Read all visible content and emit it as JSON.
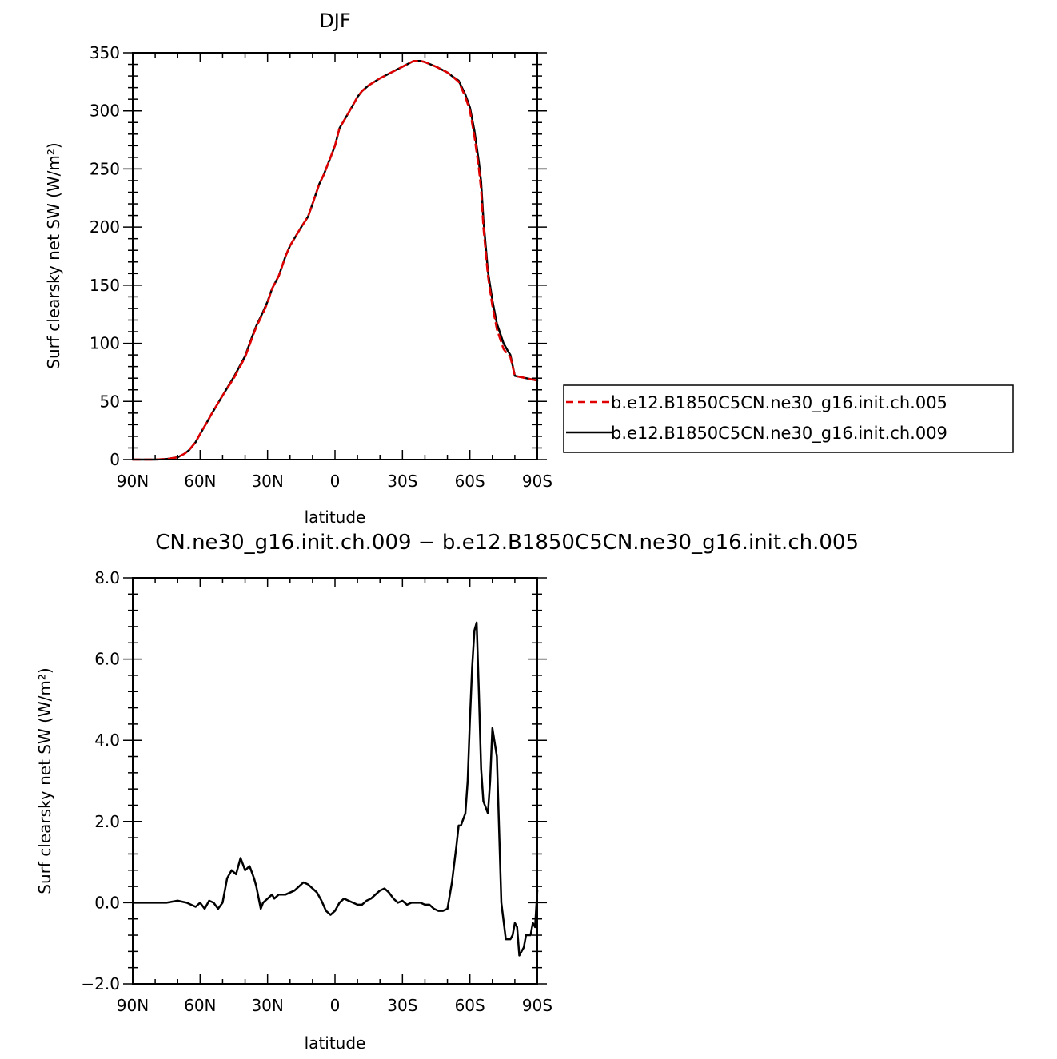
{
  "chart_data": [
    {
      "type": "line",
      "title": "DJF",
      "xlabel": "latitude",
      "ylabel": "Surf clearsky net SW (W/m²)",
      "xlim": [
        -90,
        90
      ],
      "ylim": [
        0,
        350
      ],
      "x_ticks": [
        -90,
        -60,
        -30,
        0,
        30,
        60,
        90
      ],
      "x_tick_labels": [
        "90N",
        "60N",
        "30N",
        "0",
        "30S",
        "60S",
        "90S"
      ],
      "y_ticks": [
        0,
        50,
        100,
        150,
        200,
        250,
        300,
        350
      ],
      "y_tick_labels": [
        "0",
        "50",
        "100",
        "150",
        "200",
        "250",
        "300",
        "350"
      ],
      "legend_position": "right",
      "series": [
        {
          "name": "b.e12.B1850C5CN.ne30_g16.init.ch.005",
          "color": "#e00000",
          "dash": "dashed",
          "x": [
            -90,
            -80,
            -75,
            -70,
            -67,
            -65,
            -62,
            -60,
            -57,
            -55,
            -50,
            -45,
            -40,
            -37,
            -35,
            -32,
            -30,
            -28,
            -25,
            -22,
            -20,
            -15,
            -12,
            -10,
            -7,
            -5,
            -2,
            0,
            2,
            5,
            8,
            10,
            12,
            15,
            20,
            25,
            28,
            30,
            33,
            35,
            38,
            40,
            45,
            50,
            52,
            55,
            58,
            60,
            62,
            64,
            65,
            66,
            68,
            70,
            72,
            75,
            77,
            78,
            80,
            85,
            90
          ],
          "values": [
            0,
            0,
            0.5,
            2,
            5,
            8,
            15,
            22,
            32,
            39,
            55,
            70,
            88,
            104,
            114,
            126,
            135,
            147,
            158,
            175,
            184,
            200,
            209,
            220,
            237,
            245,
            260,
            270,
            285,
            295,
            305,
            312,
            317,
            322,
            328,
            333,
            336,
            338,
            341,
            343,
            343,
            342,
            338,
            333,
            330,
            325,
            312,
            300,
            278,
            250,
            232,
            200,
            158,
            132,
            112,
            95,
            90,
            88,
            72,
            70,
            68
          ]
        },
        {
          "name": "b.e12.B1850C5CN.ne30_g16.init.ch.009",
          "color": "#000000",
          "dash": "solid",
          "x": [
            -90,
            -80,
            -75,
            -70,
            -67,
            -65,
            -62,
            -60,
            -57,
            -55,
            -50,
            -45,
            -40,
            -37,
            -35,
            -32,
            -30,
            -28,
            -25,
            -22,
            -20,
            -15,
            -12,
            -10,
            -7,
            -5,
            -2,
            0,
            2,
            5,
            8,
            10,
            12,
            15,
            20,
            25,
            28,
            30,
            33,
            35,
            38,
            40,
            45,
            50,
            52,
            55,
            58,
            60,
            62,
            64,
            65,
            66,
            68,
            70,
            72,
            75,
            77,
            78,
            80,
            85,
            90
          ],
          "values": [
            0,
            0,
            0.5,
            2,
            5,
            8,
            15,
            22,
            32,
            39,
            55,
            71,
            89,
            105,
            115,
            127,
            136,
            147,
            158,
            175,
            184,
            200,
            209,
            220,
            237,
            245,
            260,
            270,
            285,
            295,
            305,
            312,
            317,
            322,
            328,
            333,
            336,
            338,
            341,
            343,
            343,
            342,
            338,
            333,
            330,
            326,
            314,
            303,
            283,
            256,
            239,
            207,
            162,
            137,
            117,
            100,
            93,
            90,
            72,
            70,
            68
          ]
        }
      ]
    },
    {
      "type": "line",
      "title": "CN.ne30_g16.init.ch.009 − b.e12.B1850C5CN.ne30_g16.init.ch.005",
      "xlabel": "latitude",
      "ylabel": "Surf clearsky net SW (W/m²)",
      "xlim": [
        -90,
        90
      ],
      "ylim": [
        -2,
        8
      ],
      "x_ticks": [
        -90,
        -60,
        -30,
        0,
        30,
        60,
        90
      ],
      "x_tick_labels": [
        "90N",
        "60N",
        "30N",
        "0",
        "30S",
        "60S",
        "90S"
      ],
      "y_ticks": [
        -2,
        0,
        2,
        4,
        6,
        8
      ],
      "y_tick_labels": [
        "−2.0",
        "0.0",
        "2.0",
        "4.0",
        "6.0",
        "8.0"
      ],
      "series": [
        {
          "color": "#000000",
          "dash": "solid",
          "x": [
            -90,
            -80,
            -75,
            -70,
            -66,
            -62,
            -60,
            -58,
            -56,
            -54,
            -52,
            -50,
            -48,
            -46,
            -44,
            -42,
            -40,
            -38,
            -36,
            -35,
            -33,
            -32,
            -30,
            -28,
            -27,
            -25,
            -22,
            -20,
            -18,
            -16,
            -14,
            -12,
            -10,
            -8,
            -6,
            -4,
            -2,
            0,
            2,
            4,
            6,
            8,
            10,
            12,
            14,
            16,
            18,
            20,
            22,
            24,
            26,
            28,
            30,
            32,
            34,
            36,
            38,
            40,
            42,
            44,
            46,
            48,
            50,
            52,
            54,
            55,
            56,
            58,
            59,
            60,
            61,
            62,
            63,
            64,
            65,
            66,
            68,
            69,
            70,
            72,
            73,
            74,
            76,
            78,
            79,
            80,
            81,
            82,
            84,
            85,
            87,
            88,
            89,
            90
          ],
          "values": [
            0,
            0,
            0,
            0.05,
            0,
            -0.1,
            0,
            -0.15,
            0.05,
            0,
            -0.15,
            0,
            0.6,
            0.8,
            0.7,
            1.1,
            0.8,
            0.9,
            0.6,
            0.4,
            -0.15,
            0,
            0.1,
            0.2,
            0.1,
            0.2,
            0.2,
            0.25,
            0.3,
            0.4,
            0.5,
            0.45,
            0.35,
            0.25,
            0.05,
            -0.2,
            -0.3,
            -0.2,
            0,
            0.1,
            0.05,
            0,
            -0.05,
            -0.05,
            0.05,
            0.1,
            0.2,
            0.3,
            0.35,
            0.25,
            0.1,
            0,
            0.05,
            -0.05,
            0,
            0,
            0,
            -0.05,
            -0.05,
            -0.15,
            -0.2,
            -0.2,
            -0.15,
            0.5,
            1.4,
            1.9,
            1.9,
            2.2,
            3,
            4.5,
            5.8,
            6.7,
            6.9,
            5.2,
            3.3,
            2.5,
            2.2,
            3,
            4.3,
            3.6,
            1.8,
            0,
            -0.9,
            -0.9,
            -0.8,
            -0.5,
            -0.6,
            -1.3,
            -1.1,
            -0.8,
            -0.8,
            -0.5,
            -0.6,
            0.3
          ]
        }
      ]
    }
  ]
}
